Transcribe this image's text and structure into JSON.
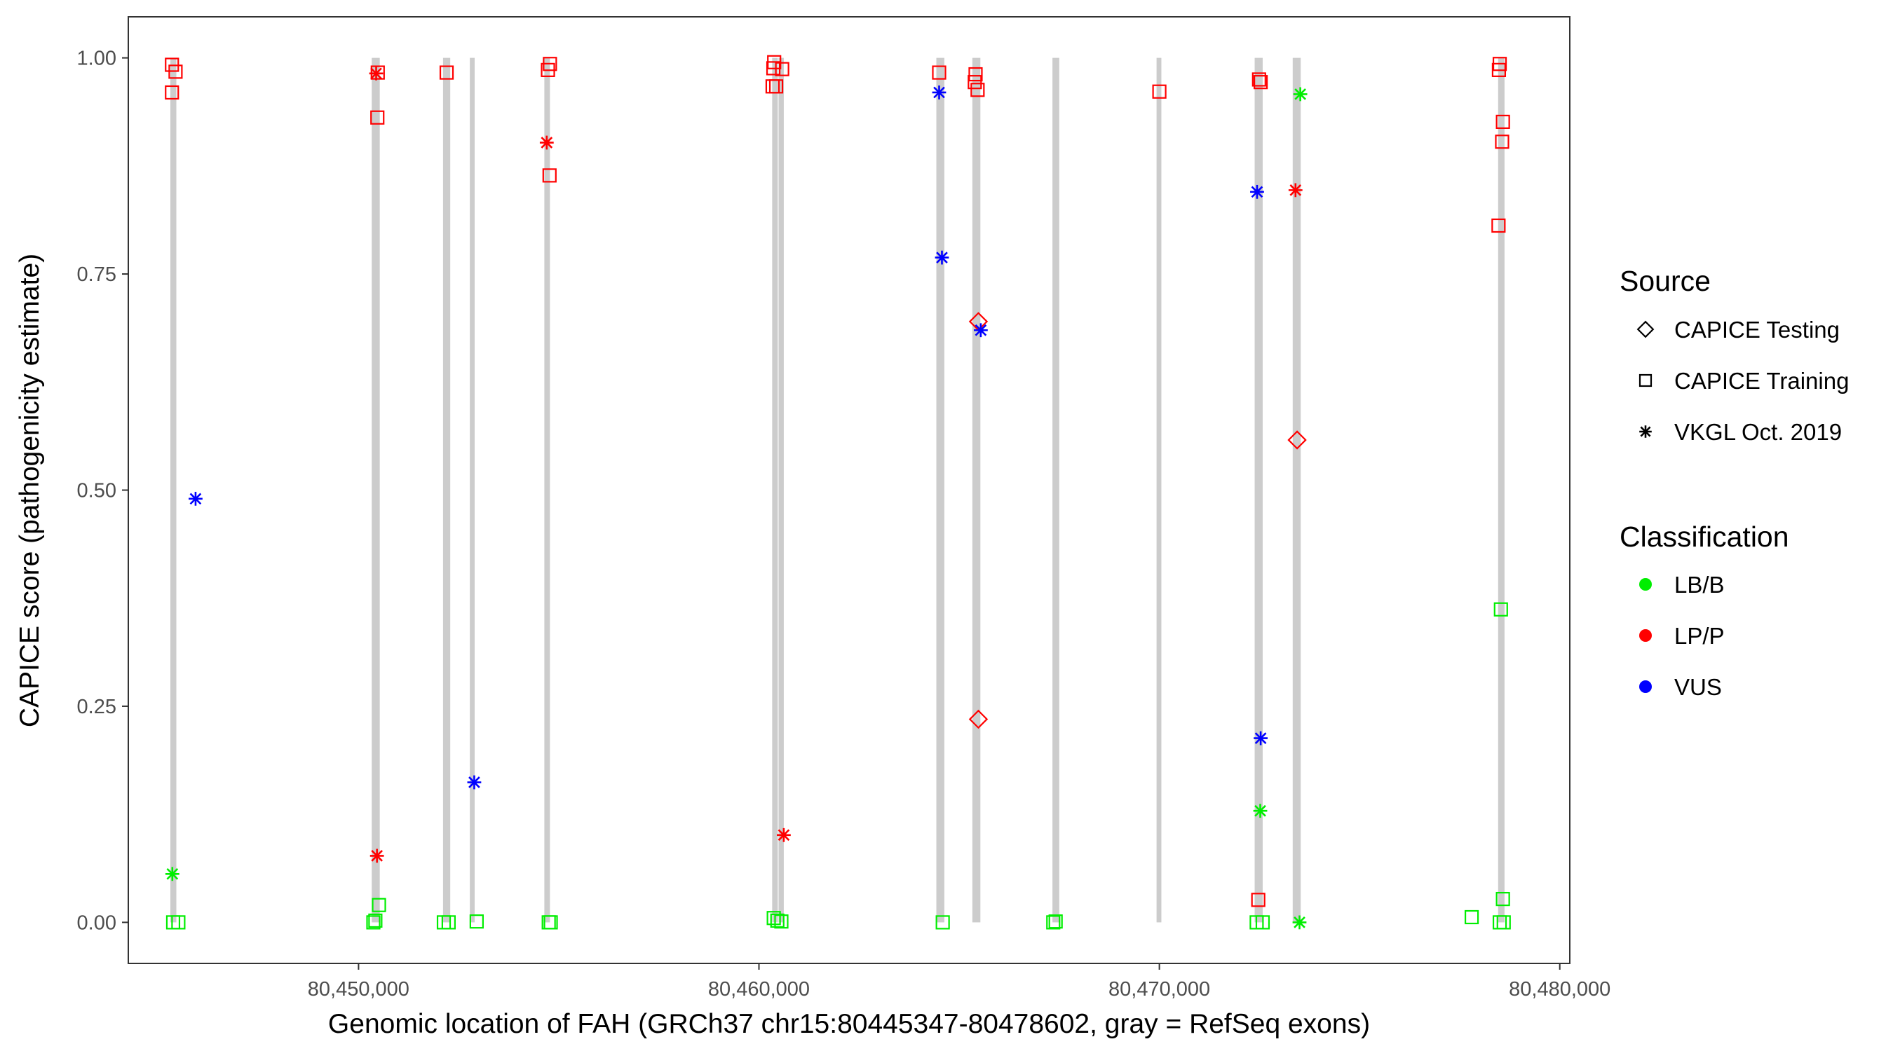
{
  "chart_data": {
    "type": "scatter",
    "title": "",
    "xlabel": "Genomic location of FAH (GRCh37 chr15:80445347-80478602, gray = RefSeq exons)",
    "ylabel": "CAPICE score (pathogenicity estimate)",
    "xlim": [
      80444250,
      80480250
    ],
    "ylim": [
      -0.0475,
      1.0475
    ],
    "x_ticks": [
      80450000,
      80460000,
      80470000,
      80480000
    ],
    "x_tick_labels": [
      "80,450,000",
      "80,460,000",
      "80,470,000",
      "80,480,000"
    ],
    "y_ticks": [
      0.0,
      0.25,
      0.5,
      0.75,
      1.0
    ],
    "y_tick_labels": [
      "0.00",
      "0.25",
      "0.50",
      "0.75",
      "1.00"
    ],
    "grid": false,
    "legend_position": "right",
    "exon_color": "#cccccc",
    "exons": [
      {
        "start": 80445300,
        "end": 80445450
      },
      {
        "start": 80450330,
        "end": 80450530
      },
      {
        "start": 80452110,
        "end": 80452290
      },
      {
        "start": 80452780,
        "end": 80452900
      },
      {
        "start": 80454640,
        "end": 80454780
      },
      {
        "start": 80460330,
        "end": 80460470
      },
      {
        "start": 80460490,
        "end": 80460620
      },
      {
        "start": 80464430,
        "end": 80464630
      },
      {
        "start": 80465330,
        "end": 80465530
      },
      {
        "start": 80467330,
        "end": 80467500
      },
      {
        "start": 80469930,
        "end": 80470050
      },
      {
        "start": 80472380,
        "end": 80472580
      },
      {
        "start": 80473330,
        "end": 80473530
      },
      {
        "start": 80478460,
        "end": 80478620
      }
    ],
    "legend": {
      "source_title": "Source",
      "source_items": [
        {
          "label": "CAPICE Testing",
          "shape": "diamond"
        },
        {
          "label": "CAPICE Training",
          "shape": "square"
        },
        {
          "label": "VKGL Oct. 2019",
          "shape": "asterisk"
        }
      ],
      "class_title": "Classification",
      "class_items": [
        {
          "label": "LB/B",
          "color": "#00ee00"
        },
        {
          "label": "LP/P",
          "color": "#ff0000"
        },
        {
          "label": "VUS",
          "color": "#0000ff"
        }
      ]
    },
    "series": [
      {
        "name": "CAPICE Training",
        "shape": "square",
        "points": [
          {
            "x": 80445340,
            "y": 0.992,
            "cls": "LP/P"
          },
          {
            "x": 80445430,
            "y": 0.984,
            "cls": "LP/P"
          },
          {
            "x": 80445340,
            "y": 0.96,
            "cls": "LP/P"
          },
          {
            "x": 80445370,
            "y": 0.0,
            "cls": "LB/B"
          },
          {
            "x": 80445500,
            "y": 0.0,
            "cls": "LB/B"
          },
          {
            "x": 80450480,
            "y": 0.983,
            "cls": "LP/P"
          },
          {
            "x": 80450470,
            "y": 0.931,
            "cls": "LP/P"
          },
          {
            "x": 80450510,
            "y": 0.02,
            "cls": "LB/B"
          },
          {
            "x": 80450420,
            "y": 0.002,
            "cls": "LB/B"
          },
          {
            "x": 80450370,
            "y": 0.0,
            "cls": "LB/B"
          },
          {
            "x": 80452200,
            "y": 0.983,
            "cls": "LP/P"
          },
          {
            "x": 80452130,
            "y": 0.0,
            "cls": "LB/B"
          },
          {
            "x": 80452250,
            "y": 0.0,
            "cls": "LB/B"
          },
          {
            "x": 80452950,
            "y": 0.001,
            "cls": "LB/B"
          },
          {
            "x": 80454780,
            "y": 0.993,
            "cls": "LP/P"
          },
          {
            "x": 80454730,
            "y": 0.986,
            "cls": "LP/P"
          },
          {
            "x": 80454770,
            "y": 0.864,
            "cls": "LP/P"
          },
          {
            "x": 80454750,
            "y": 0.0,
            "cls": "LB/B"
          },
          {
            "x": 80454800,
            "y": 0.0,
            "cls": "LB/B"
          },
          {
            "x": 80460380,
            "y": 0.995,
            "cls": "LP/P"
          },
          {
            "x": 80460360,
            "y": 0.988,
            "cls": "LP/P"
          },
          {
            "x": 80460580,
            "y": 0.987,
            "cls": "LP/P"
          },
          {
            "x": 80460340,
            "y": 0.967,
            "cls": "LP/P"
          },
          {
            "x": 80460430,
            "y": 0.967,
            "cls": "LP/P"
          },
          {
            "x": 80460370,
            "y": 0.005,
            "cls": "LB/B"
          },
          {
            "x": 80460460,
            "y": 0.002,
            "cls": "LB/B"
          },
          {
            "x": 80460560,
            "y": 0.001,
            "cls": "LB/B"
          },
          {
            "x": 80464500,
            "y": 0.983,
            "cls": "LP/P"
          },
          {
            "x": 80464590,
            "y": 0.0,
            "cls": "LB/B"
          },
          {
            "x": 80465410,
            "y": 0.981,
            "cls": "LP/P"
          },
          {
            "x": 80465390,
            "y": 0.972,
            "cls": "LP/P"
          },
          {
            "x": 80465460,
            "y": 0.963,
            "cls": "LP/P"
          },
          {
            "x": 80467350,
            "y": 0.0,
            "cls": "LB/B"
          },
          {
            "x": 80467410,
            "y": 0.001,
            "cls": "LB/B"
          },
          {
            "x": 80470000,
            "y": 0.961,
            "cls": "LP/P"
          },
          {
            "x": 80472490,
            "y": 0.975,
            "cls": "LP/P"
          },
          {
            "x": 80472530,
            "y": 0.972,
            "cls": "LP/P"
          },
          {
            "x": 80472470,
            "y": 0.026,
            "cls": "LP/P"
          },
          {
            "x": 80472430,
            "y": 0.0,
            "cls": "LB/B"
          },
          {
            "x": 80472580,
            "y": 0.0,
            "cls": "LB/B"
          },
          {
            "x": 80478500,
            "y": 0.993,
            "cls": "LP/P"
          },
          {
            "x": 80478480,
            "y": 0.986,
            "cls": "LP/P"
          },
          {
            "x": 80478580,
            "y": 0.926,
            "cls": "LP/P"
          },
          {
            "x": 80478560,
            "y": 0.903,
            "cls": "LP/P"
          },
          {
            "x": 80478470,
            "y": 0.806,
            "cls": "LP/P"
          },
          {
            "x": 80478530,
            "y": 0.362,
            "cls": "LB/B"
          },
          {
            "x": 80478580,
            "y": 0.027,
            "cls": "LB/B"
          },
          {
            "x": 80477800,
            "y": 0.006,
            "cls": "LB/B"
          },
          {
            "x": 80478500,
            "y": 0.0,
            "cls": "LB/B"
          },
          {
            "x": 80478600,
            "y": 0.0,
            "cls": "LB/B"
          }
        ]
      },
      {
        "name": "CAPICE Testing",
        "shape": "diamond",
        "points": [
          {
            "x": 80465480,
            "y": 0.695,
            "cls": "LP/P"
          },
          {
            "x": 80465480,
            "y": 0.235,
            "cls": "LP/P"
          },
          {
            "x": 80473440,
            "y": 0.558,
            "cls": "LP/P"
          }
        ]
      },
      {
        "name": "VKGL Oct. 2019",
        "shape": "asterisk",
        "points": [
          {
            "x": 80445930,
            "y": 0.49,
            "cls": "VUS"
          },
          {
            "x": 80445350,
            "y": 0.056,
            "cls": "LB/B"
          },
          {
            "x": 80450440,
            "y": 0.982,
            "cls": "LP/P"
          },
          {
            "x": 80450460,
            "y": 0.077,
            "cls": "LP/P"
          },
          {
            "x": 80452890,
            "y": 0.162,
            "cls": "VUS"
          },
          {
            "x": 80454700,
            "y": 0.902,
            "cls": "LP/P"
          },
          {
            "x": 80460620,
            "y": 0.101,
            "cls": "LP/P"
          },
          {
            "x": 80464500,
            "y": 0.96,
            "cls": "VUS"
          },
          {
            "x": 80464570,
            "y": 0.769,
            "cls": "VUS"
          },
          {
            "x": 80465540,
            "y": 0.685,
            "cls": "VUS"
          },
          {
            "x": 80472440,
            "y": 0.845,
            "cls": "VUS"
          },
          {
            "x": 80472530,
            "y": 0.213,
            "cls": "VUS"
          },
          {
            "x": 80472520,
            "y": 0.129,
            "cls": "LB/B"
          },
          {
            "x": 80473400,
            "y": 0.847,
            "cls": "LP/P"
          },
          {
            "x": 80473520,
            "y": 0.958,
            "cls": "LB/B"
          },
          {
            "x": 80473500,
            "y": 0.0,
            "cls": "LB/B"
          }
        ]
      }
    ]
  }
}
